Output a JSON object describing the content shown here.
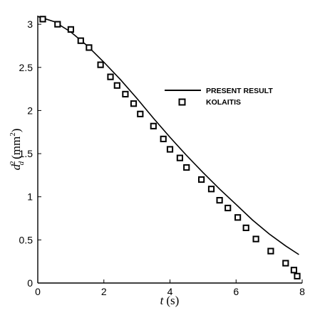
{
  "chart_data": {
    "type": "line",
    "xlabel": {
      "var": "t",
      "unit": "(s)"
    },
    "ylabel": {
      "var": "d",
      "sub": "d",
      "sup": "2",
      "unit_open": "(mm",
      "unit_sup": "2",
      "unit_close": ")"
    },
    "xlim": [
      0,
      8
    ],
    "ylim": [
      0,
      3.1
    ],
    "xticks": [
      0,
      2,
      4,
      6,
      8
    ],
    "yticks": [
      0,
      0.5,
      1,
      1.5,
      2,
      2.5,
      3
    ],
    "ytick_labels": [
      "0",
      "0.5",
      "1",
      "1.5",
      "2",
      "2.5",
      "3"
    ],
    "grid": false,
    "legend_position": "upper-right",
    "series": [
      {
        "name": "PRESENT RESULT",
        "style": "line",
        "color": "#000000",
        "x": [
          0,
          0.5,
          1.0,
          1.5,
          2.0,
          2.5,
          3.0,
          3.5,
          4.0,
          4.5,
          5.0,
          5.5,
          6.0,
          6.5,
          7.0,
          7.5,
          7.9
        ],
        "y": [
          3.09,
          3.03,
          2.91,
          2.75,
          2.56,
          2.36,
          2.14,
          1.91,
          1.69,
          1.48,
          1.28,
          1.09,
          0.91,
          0.73,
          0.57,
          0.43,
          0.33
        ]
      },
      {
        "name": "KOLAITIS",
        "style": "markers",
        "marker": "square",
        "color": "#000000",
        "x": [
          0.15,
          0.6,
          1.0,
          1.3,
          1.55,
          1.9,
          2.2,
          2.4,
          2.65,
          2.9,
          3.1,
          3.5,
          3.8,
          4.0,
          4.3,
          4.5,
          4.95,
          5.25,
          5.5,
          5.75,
          6.05,
          6.3,
          6.6,
          7.05,
          7.5,
          7.75,
          7.85
        ],
        "y": [
          3.06,
          3.0,
          2.94,
          2.81,
          2.73,
          2.53,
          2.39,
          2.29,
          2.19,
          2.08,
          1.96,
          1.82,
          1.67,
          1.55,
          1.45,
          1.34,
          1.2,
          1.09,
          0.96,
          0.87,
          0.76,
          0.64,
          0.51,
          0.37,
          0.23,
          0.15,
          0.08
        ]
      }
    ]
  }
}
